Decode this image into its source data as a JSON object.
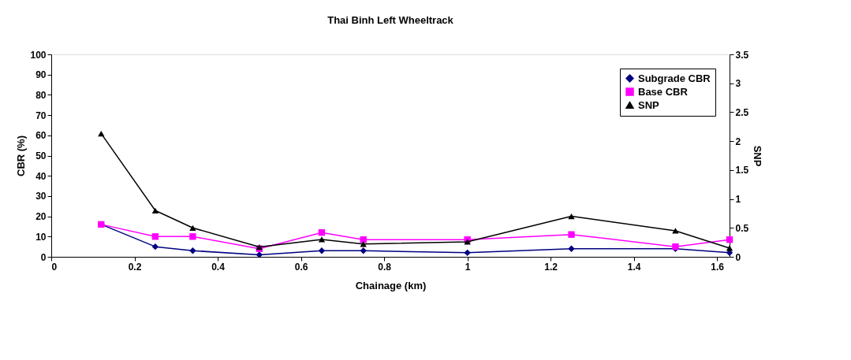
{
  "chart_data": {
    "type": "line",
    "title": "Thai Binh Left Wheeltrack",
    "xlabel": "Chainage (km)",
    "ylabel": "CBR (%)",
    "y2label": "SNP",
    "x": [
      0.12,
      0.25,
      0.34,
      0.5,
      0.65,
      0.75,
      1,
      1.25,
      1.5,
      1.63
    ],
    "series": [
      {
        "name": "Subgrade CBR",
        "color": "#000080",
        "marker": "diamond",
        "values": [
          16,
          5,
          3,
          1,
          3,
          3,
          2,
          4,
          4,
          2
        ]
      },
      {
        "name": "Base CBR",
        "color": "#ff00ff",
        "marker": "square",
        "values": [
          16,
          10,
          10,
          4,
          12,
          8.5,
          8.5,
          11,
          5,
          8.5
        ]
      },
      {
        "name": "SNP",
        "color": "#000000",
        "marker": "triangle",
        "axis": "y2",
        "values": [
          2.13,
          0.8,
          0.5,
          0.17,
          0.3,
          0.22,
          0.26,
          0.7,
          0.45,
          0.15
        ]
      }
    ],
    "xlim": [
      0,
      1.63
    ],
    "xticks": [
      0,
      0.2,
      0.4,
      0.6,
      0.8,
      1,
      1.2,
      1.4,
      1.6
    ],
    "ylim": [
      0,
      100
    ],
    "yticks": [
      0,
      10,
      20,
      30,
      40,
      50,
      60,
      70,
      80,
      90,
      100
    ],
    "y2lim": [
      0,
      3.5
    ],
    "y2ticks": [
      0,
      0.5,
      1,
      1.5,
      2,
      2.5,
      3,
      3.5
    ],
    "grid": false,
    "legend": "top right",
    "line_style": "solid"
  }
}
